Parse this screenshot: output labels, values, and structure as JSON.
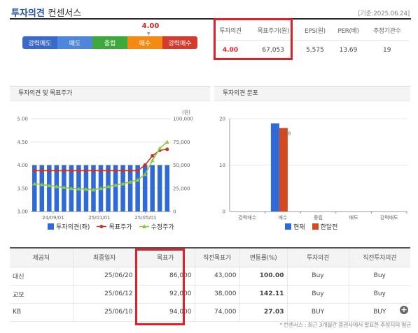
{
  "header": {
    "title_main": "투자의견",
    "title_sub": "컨센서스",
    "as_of": "[기준:2025.06.24]"
  },
  "gauge": {
    "value_label": "4.00",
    "value": 4.0,
    "segments": [
      {
        "label": "강력매도",
        "color": "#3a6ac9"
      },
      {
        "label": "매도",
        "color": "#4e86dc"
      },
      {
        "label": "중립",
        "color": "#3fa83c"
      },
      {
        "label": "매수",
        "color": "#f28a14"
      },
      {
        "label": "강력매수",
        "color": "#d33b2c"
      }
    ]
  },
  "summary": {
    "headers": [
      "투자의견",
      "목표주가(원)",
      "EPS(원)",
      "PER(배)",
      "추정기관수"
    ],
    "values": [
      "4.00",
      "67,053",
      "5,575",
      "13.69",
      "19"
    ]
  },
  "left_panel": {
    "title": "투자의견 및 목표주가",
    "unit_label": "(원)",
    "legend": [
      "투자의견(좌)",
      "목표주가",
      "수정주가"
    ]
  },
  "right_panel": {
    "title": "투자의견 분포",
    "legend": [
      "현재",
      "한달전"
    ]
  },
  "chart_data": [
    {
      "type": "bar",
      "title": "투자의견 및 목표주가",
      "x_tick_labels": [
        "24/09/01",
        "25/01/01",
        "25/05/01"
      ],
      "left_axis": {
        "ticks": [
          "5.00",
          "4.50",
          "4.00",
          "3.50",
          "3.00"
        ],
        "ylim": [
          3.0,
          5.0
        ]
      },
      "right_axis": {
        "ticks": [
          "100,000",
          "75,000",
          "50,000",
          "25,000",
          "0"
        ],
        "ylim": [
          0,
          100000
        ]
      },
      "series": [
        {
          "name": "투자의견(좌)",
          "axis": "left",
          "color": "#2e6ad8",
          "values": [
            4.0,
            4.0,
            4.0,
            4.0,
            4.0,
            4.0,
            4.0,
            4.0,
            4.0,
            4.0,
            4.0,
            4.0,
            4.0,
            4.0,
            4.0,
            4.0,
            4.0,
            4.0,
            4.0
          ]
        },
        {
          "name": "목표주가",
          "axis": "right",
          "color": "#c0392b",
          "values": [
            44000,
            44000,
            44000,
            44000,
            44000,
            44000,
            44000,
            44000,
            44000,
            44000,
            44000,
            44000,
            44000,
            44000,
            44000,
            50000,
            60000,
            66000,
            67053
          ]
        },
        {
          "name": "수정주가",
          "axis": "right",
          "color": "#8dc63f",
          "values": [
            30000,
            29000,
            28000,
            27000,
            26000,
            25000,
            24500,
            24000,
            23500,
            25000,
            27000,
            28500,
            30000,
            32000,
            34000,
            40000,
            55000,
            68000,
            75000
          ]
        }
      ]
    },
    {
      "type": "bar",
      "title": "투자의견 분포",
      "categories": [
        "강력매수",
        "매수",
        "중립",
        "매도",
        "강력매도"
      ],
      "y_ticks": [
        "20",
        "10",
        "0"
      ],
      "ylim": [
        0,
        20
      ],
      "series": [
        {
          "name": "현재",
          "color": "#2e6ad8",
          "values": [
            0,
            19,
            0,
            0,
            0
          ]
        },
        {
          "name": "한달전",
          "color": "#d34a1f",
          "values": [
            0,
            18,
            0,
            0,
            0
          ]
        }
      ],
      "bar_labels": [
        "",
        "18",
        "",
        "",
        ""
      ]
    }
  ],
  "broker_table": {
    "headers": [
      "제공처",
      "최종일자",
      "목표가",
      "직전목표가",
      "변동률(%)",
      "투자의견",
      "직전투자의견"
    ],
    "rows": [
      {
        "broker": "대신",
        "date": "25/06/20",
        "target": "86,000",
        "prev_target": "43,000",
        "change": "100.00",
        "opinion": "Buy",
        "prev_opinion": "Buy"
      },
      {
        "broker": "교보",
        "date": "25/06/12",
        "target": "92,000",
        "prev_target": "38,000",
        "change": "142.11",
        "opinion": "Buy",
        "prev_opinion": "Buy"
      },
      {
        "broker": "KB",
        "date": "25/06/10",
        "target": "94,000",
        "prev_target": "74,000",
        "change": "27.03",
        "opinion": "BUY",
        "prev_opinion": "BUY"
      }
    ]
  },
  "footnote": "* 컨센서스 : 최근 3개월간 증권사에서 발표한 추정치의 평균"
}
